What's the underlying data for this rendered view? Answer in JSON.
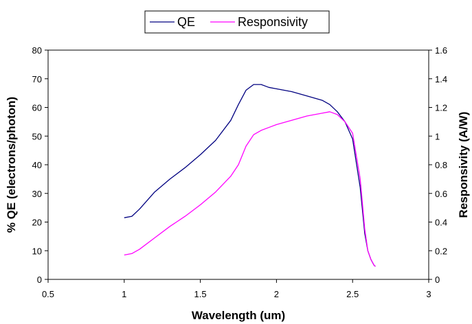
{
  "chart_data": {
    "type": "line",
    "title": "",
    "xlabel": "Wavelength (um)",
    "ylabel": "% QE (electrons/photon)",
    "y2label": "Responsivity (A/W)",
    "xlim": [
      0.5,
      3
    ],
    "ylim": [
      0,
      80
    ],
    "y2lim": [
      0,
      1.6
    ],
    "xticks": [
      "0.5",
      "1",
      "1.5",
      "2",
      "2.5",
      "3"
    ],
    "yticks": [
      "0",
      "10",
      "20",
      "30",
      "40",
      "50",
      "60",
      "70",
      "80"
    ],
    "y2ticks": [
      "0",
      "0.2",
      "0.4",
      "0.6",
      "0.8",
      "1",
      "1.2",
      "1.4",
      "1.6"
    ],
    "grid": false,
    "legend_position": "top",
    "series": [
      {
        "name": "QE",
        "axis": "left",
        "color": "#000080",
        "x": [
          1.0,
          1.05,
          1.1,
          1.2,
          1.3,
          1.4,
          1.5,
          1.6,
          1.7,
          1.75,
          1.8,
          1.85,
          1.9,
          1.95,
          2.0,
          2.1,
          2.2,
          2.3,
          2.35,
          2.4,
          2.45,
          2.5,
          2.55,
          2.58,
          2.6,
          2.62,
          2.64,
          2.65
        ],
        "y": [
          21.5,
          22,
          24.5,
          30.5,
          35,
          39,
          43.5,
          48.5,
          55.5,
          61,
          66,
          68,
          68,
          67,
          66.5,
          65.5,
          64,
          62.5,
          61,
          58.5,
          55,
          49,
          32,
          16,
          10,
          7,
          5,
          4.5
        ]
      },
      {
        "name": "Responsivity",
        "axis": "right",
        "color": "#ff00ff",
        "x": [
          1.0,
          1.05,
          1.1,
          1.2,
          1.3,
          1.4,
          1.5,
          1.6,
          1.7,
          1.75,
          1.8,
          1.85,
          1.9,
          1.95,
          2.0,
          2.1,
          2.2,
          2.3,
          2.35,
          2.4,
          2.45,
          2.5,
          2.55,
          2.58,
          2.6,
          2.62,
          2.64,
          2.65
        ],
        "y": [
          0.17,
          0.18,
          0.21,
          0.29,
          0.37,
          0.44,
          0.52,
          0.61,
          0.72,
          0.8,
          0.93,
          1.01,
          1.04,
          1.06,
          1.08,
          1.11,
          1.14,
          1.16,
          1.17,
          1.15,
          1.1,
          1.02,
          0.7,
          0.35,
          0.2,
          0.14,
          0.1,
          0.09
        ]
      }
    ]
  }
}
